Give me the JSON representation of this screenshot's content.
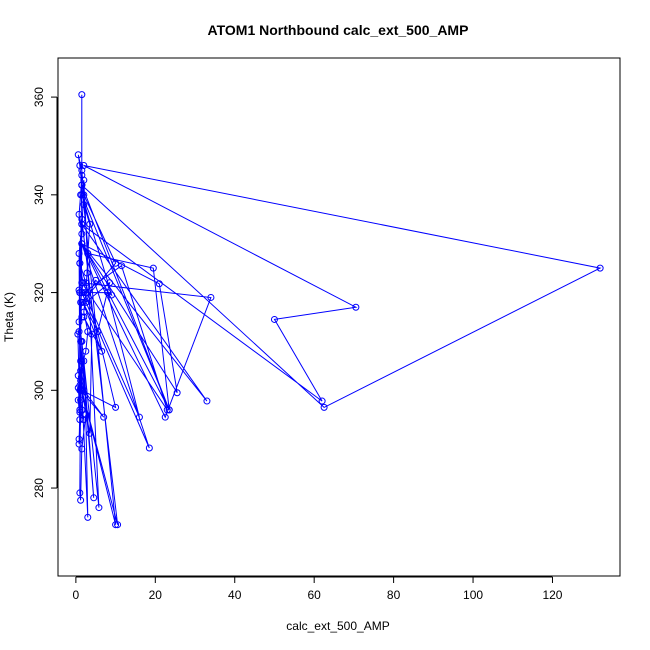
{
  "chart_data": {
    "type": "line",
    "title": "ATOM1 Northbound calc_ext_500_AMP",
    "xlabel": "calc_ext_500_AMP",
    "ylabel": "Theta (K)",
    "xlim": [
      -4.5,
      137
    ],
    "ylim": [
      262,
      368
    ],
    "x_ticks": [
      0,
      20,
      40,
      60,
      80,
      100,
      120
    ],
    "y_ticks": [
      280,
      300,
      320,
      340,
      360
    ],
    "series_color": "#0000ff",
    "marker": "open-circle",
    "points": [
      [
        1.5,
        360.5
      ],
      [
        1.5,
        344
      ],
      [
        1.2,
        340
      ],
      [
        0.8,
        336
      ],
      [
        1.5,
        332
      ],
      [
        1.0,
        326
      ],
      [
        1.8,
        322
      ],
      [
        1.2,
        318
      ],
      [
        0.8,
        314
      ],
      [
        1.5,
        310
      ],
      [
        2.0,
        306
      ],
      [
        1.2,
        302
      ],
      [
        0.6,
        298
      ],
      [
        1.0,
        294
      ],
      [
        0.8,
        290
      ],
      [
        1.5,
        296
      ],
      [
        1.0,
        300
      ],
      [
        1.2,
        304
      ],
      [
        2.5,
        308
      ],
      [
        3.0,
        312
      ],
      [
        2.0,
        316
      ],
      [
        2.5,
        320
      ],
      [
        2.8,
        324
      ],
      [
        3.0,
        328
      ],
      [
        3.5,
        334
      ],
      [
        2.0,
        338
      ],
      [
        1.5,
        342
      ],
      [
        1.0,
        346
      ],
      [
        0.6,
        348.2
      ],
      [
        1.5,
        345
      ],
      [
        2.0,
        340
      ],
      [
        10.0,
        326
      ],
      [
        1.5,
        318
      ],
      [
        0.8,
        312
      ],
      [
        1.2,
        306
      ],
      [
        2.0,
        300
      ],
      [
        7.0,
        294.5
      ],
      [
        1.2,
        300
      ],
      [
        1.0,
        279
      ],
      [
        1.2,
        277.5
      ],
      [
        1.5,
        288
      ],
      [
        2.5,
        295
      ],
      [
        3.0,
        274
      ],
      [
        1.5,
        300
      ],
      [
        1.0,
        320
      ],
      [
        1.5,
        342
      ],
      [
        10.0,
        272.5
      ],
      [
        1.5,
        300
      ],
      [
        1.0,
        320
      ],
      [
        1.5,
        335
      ],
      [
        10.5,
        272.5
      ],
      [
        1.5,
        300
      ],
      [
        1.0,
        320
      ],
      [
        2.0,
        343
      ],
      [
        5.8,
        276
      ],
      [
        1.5,
        310
      ],
      [
        4.5,
        278
      ],
      [
        1.2,
        310
      ],
      [
        1.5,
        330
      ],
      [
        18.5,
        288.2
      ],
      [
        1.5,
        320
      ],
      [
        8.0,
        320
      ],
      [
        16.0,
        294.5
      ],
      [
        2.0,
        320
      ],
      [
        11.5,
        325.5
      ],
      [
        23.0,
        296
      ],
      [
        1.5,
        322
      ],
      [
        34.0,
        319
      ],
      [
        22.5,
        294.5
      ],
      [
        1.5,
        330
      ],
      [
        21.0,
        321.8
      ],
      [
        25.5,
        299.5
      ],
      [
        1.5,
        330
      ],
      [
        33.0,
        297.8
      ],
      [
        1.5,
        334
      ],
      [
        62.0,
        297.8
      ],
      [
        50.0,
        314.5
      ],
      [
        70.5,
        317
      ],
      [
        2.0,
        346
      ],
      [
        132.0,
        325
      ],
      [
        62.5,
        296.5
      ],
      [
        1.5,
        342
      ],
      [
        23.5,
        296
      ],
      [
        3.0,
        328
      ],
      [
        19.5,
        325
      ],
      [
        23.5,
        296
      ],
      [
        1.5,
        340
      ],
      [
        9.0,
        319.5
      ],
      [
        5.0,
        322.5
      ],
      [
        2.5,
        318
      ],
      [
        8.5,
        322
      ],
      [
        5.5,
        312
      ],
      [
        1.8,
        318
      ],
      [
        6.5,
        308
      ],
      [
        2.0,
        315
      ],
      [
        4.0,
        311.5
      ],
      [
        3.5,
        291.2
      ],
      [
        1.5,
        300
      ],
      [
        10.0,
        296.5
      ],
      [
        2.5,
        322
      ],
      [
        1.0,
        326
      ],
      [
        1.5,
        334
      ],
      [
        0.8,
        328
      ],
      [
        1.0,
        301
      ],
      [
        0.6,
        303
      ],
      [
        1.2,
        298
      ],
      [
        2.0,
        294
      ],
      [
        1.0,
        296
      ],
      [
        0.6,
        300.5
      ],
      [
        1.5,
        306
      ],
      [
        0.8,
        289
      ],
      [
        1.0,
        295.5
      ],
      [
        0.5,
        311.5
      ],
      [
        1.5,
        315
      ],
      [
        0.8,
        320.5
      ]
    ]
  }
}
